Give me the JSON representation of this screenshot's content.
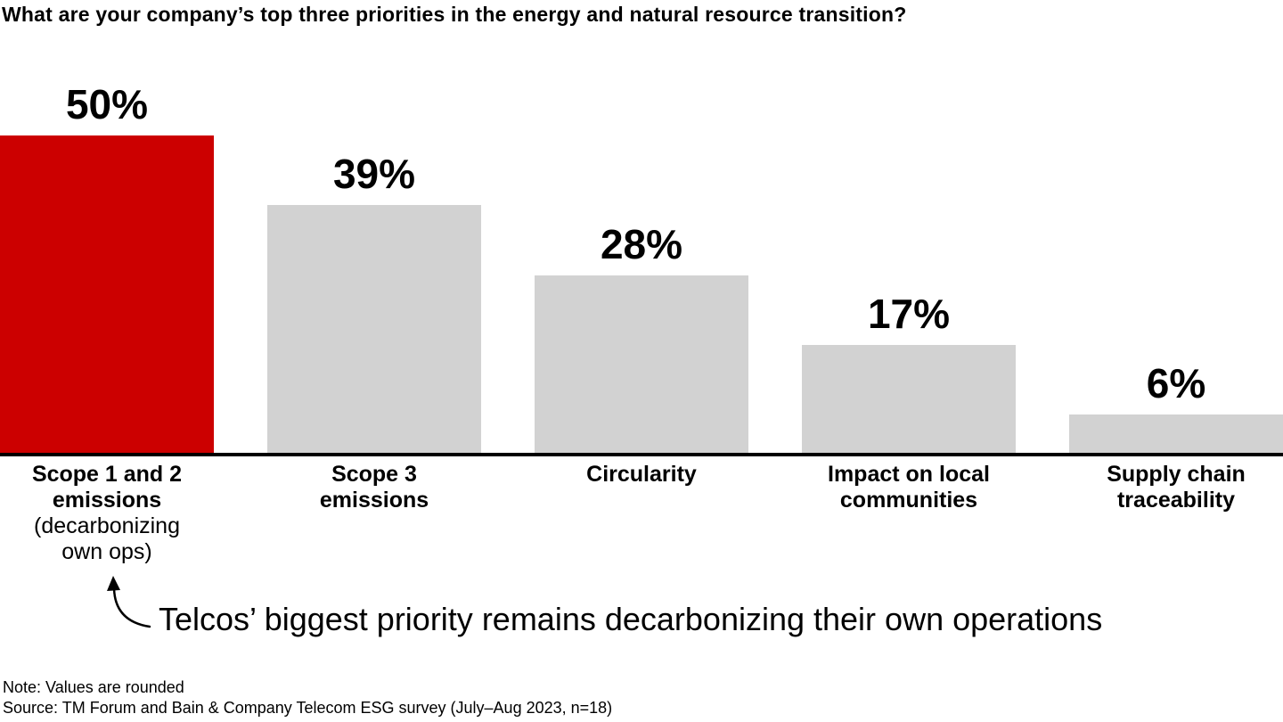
{
  "title": "What are your company’s top three priorities in the energy and natural resource transition?",
  "chart_data": {
    "type": "bar",
    "title": "What are your company’s top three priorities in the energy and natural resource transition?",
    "categories": [
      "Scope 1 and 2 emissions (decarbonizing own ops)",
      "Scope 3 emissions",
      "Circularity",
      "Impact on local communities",
      "Supply chain traceability"
    ],
    "values": [
      50,
      39,
      28,
      17,
      6
    ],
    "value_labels": [
      "50%",
      "39%",
      "28%",
      "17%",
      "6%"
    ],
    "unit": "%",
    "ylim": [
      0,
      56
    ],
    "grid": false,
    "legend": false,
    "xlabel": "",
    "ylabel": "",
    "highlight_color": "#cc0000",
    "default_color": "#d2d2d2",
    "bar_colors": [
      "#cc0000",
      "#d2d2d2",
      "#d2d2d2",
      "#d2d2d2",
      "#d2d2d2"
    ],
    "category_labels": [
      {
        "bold_lines": [
          "Scope 1 and 2",
          "emissions"
        ],
        "plain_lines": [
          "(decarbonizing",
          "own ops)"
        ]
      },
      {
        "bold_lines": [
          "Scope 3",
          "emissions"
        ],
        "plain_lines": []
      },
      {
        "bold_lines": [
          "Circularity"
        ],
        "plain_lines": []
      },
      {
        "bold_lines": [
          "Impact on local",
          "communities"
        ],
        "plain_lines": []
      },
      {
        "bold_lines": [
          "Supply chain",
          "traceability"
        ],
        "plain_lines": []
      }
    ]
  },
  "annotation": {
    "text": "Telcos’ biggest priority remains decarbonizing their own operations",
    "arrow_icon": "curved-arrow-up"
  },
  "footer": {
    "note": "Note: Values are rounded",
    "source": "Source: TM Forum and Bain & Company Telecom ESG survey (July–Aug 2023, n=18)"
  }
}
